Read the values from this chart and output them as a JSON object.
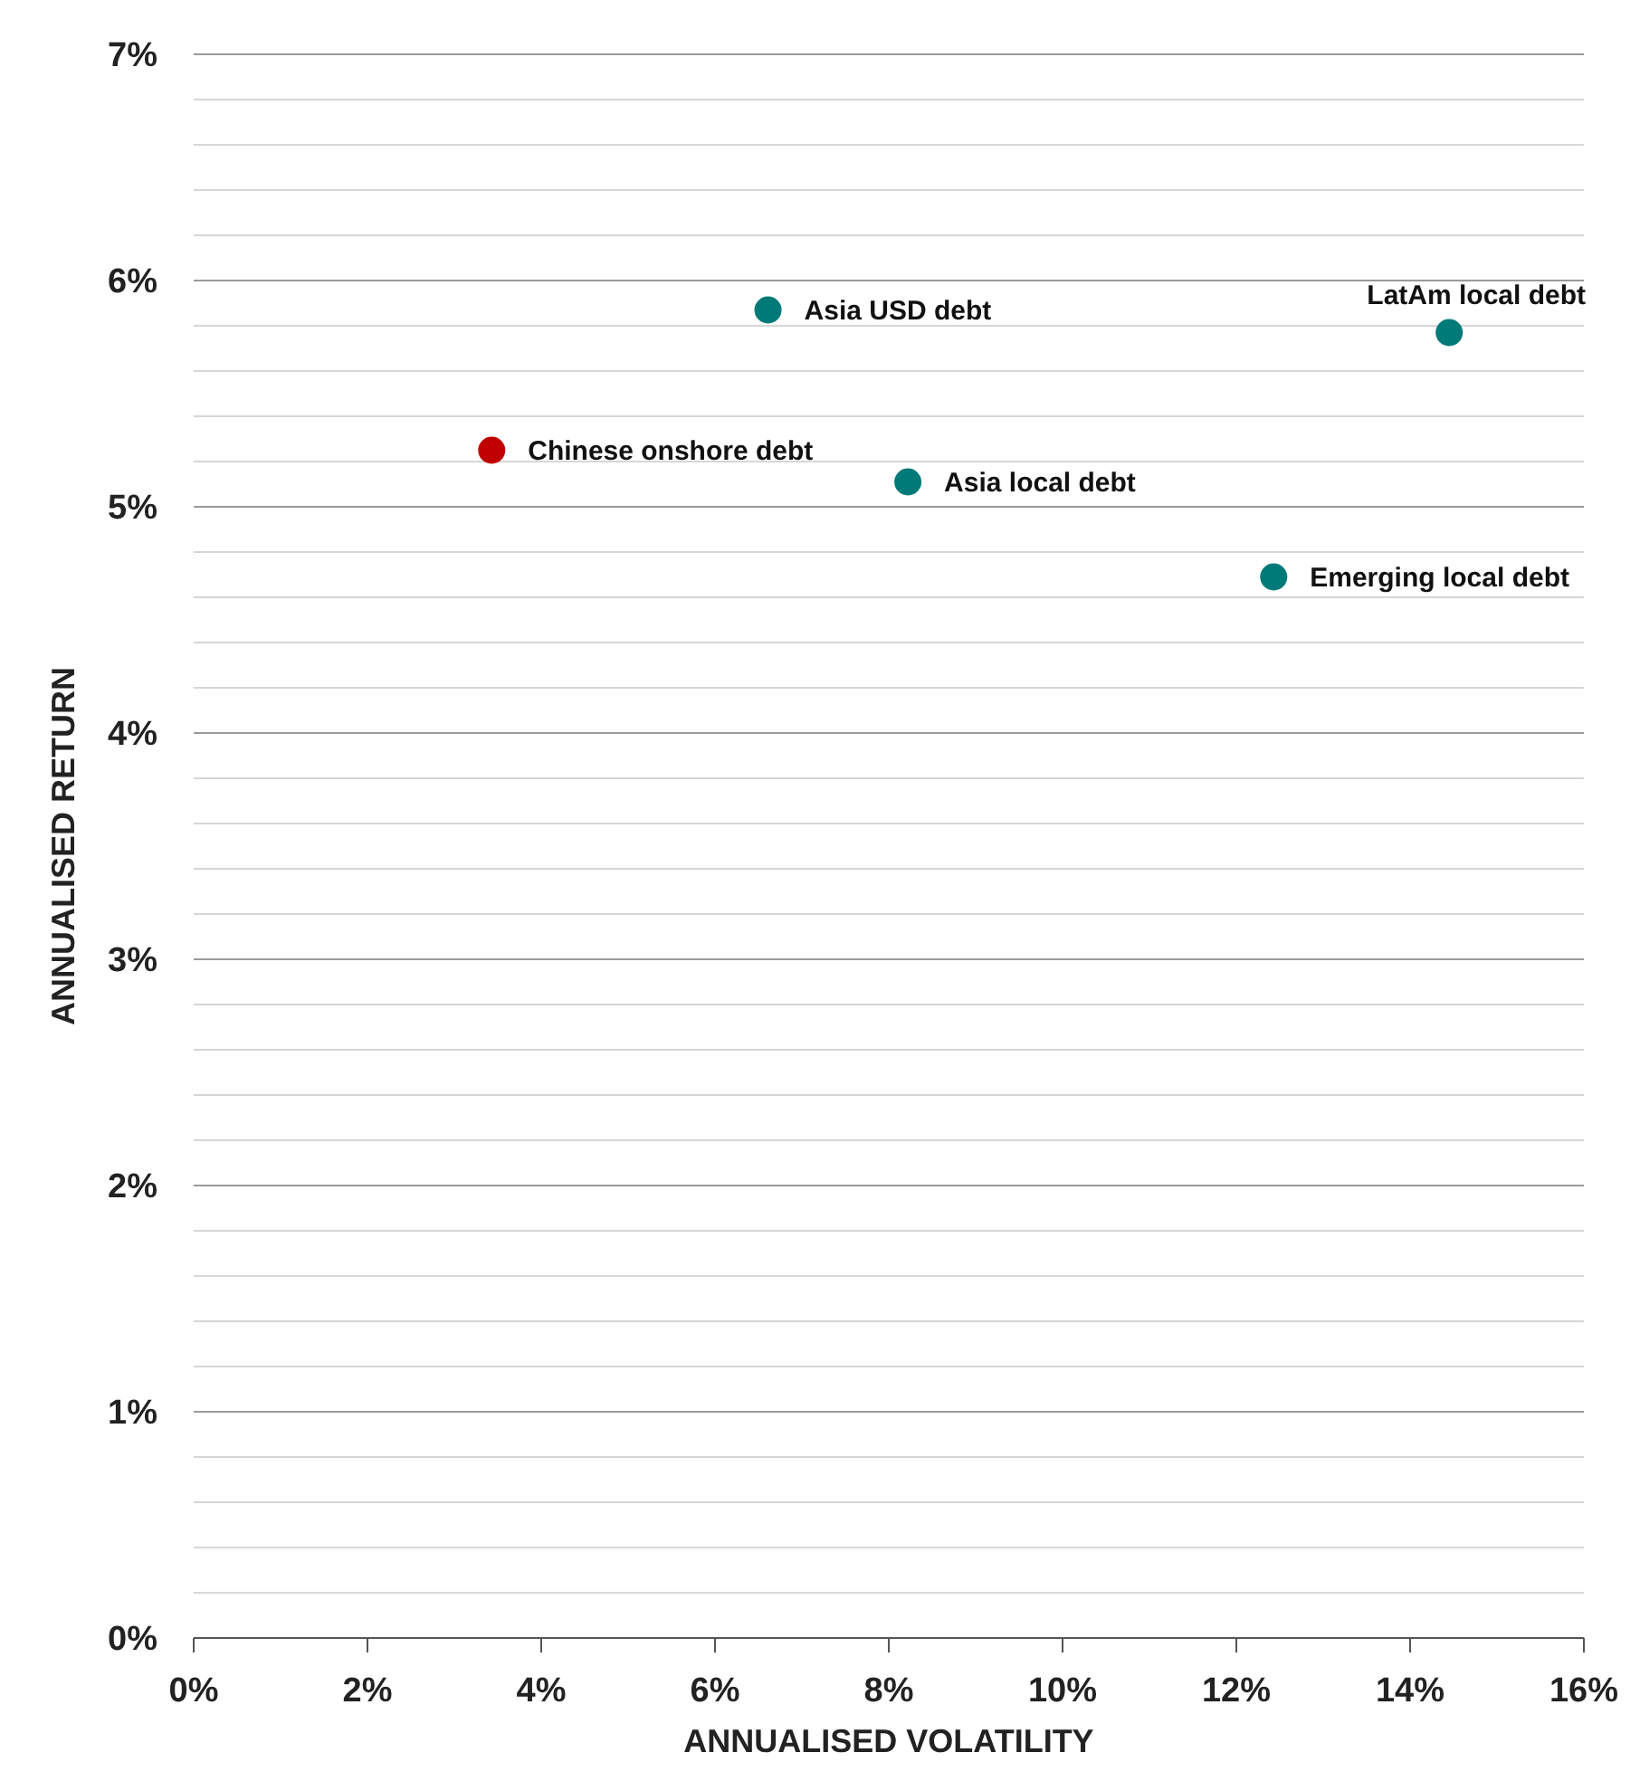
{
  "chart_data": {
    "type": "scatter",
    "xlabel": "ANNUALISED VOLATILITY",
    "ylabel": "ANNUALISED RETURN",
    "x": [
      3.43,
      6.61,
      8.22,
      12.43,
      14.45
    ],
    "series": [
      {
        "values": [
          5.25,
          5.87,
          5.11,
          4.69,
          5.77
        ],
        "colors": [
          "#c00000",
          "#007a78",
          "#007a78",
          "#007a78",
          "#007a78"
        ]
      }
    ],
    "annotations": [
      {
        "text": "Chinese onshore debt",
        "x": 3.43,
        "y": 5.25
      },
      {
        "text": "Asia USD debt",
        "x": 6.61,
        "y": 5.87
      },
      {
        "text": "Asia local debt",
        "x": 8.22,
        "y": 5.11
      },
      {
        "text": "Emerging local debt",
        "x": 12.43,
        "y": 4.69
      },
      {
        "text": "LatAm local debt",
        "x": 14.45,
        "y": 5.77
      }
    ],
    "xlim": [
      0,
      16
    ],
    "ylim": [
      0,
      7
    ],
    "xticks": [
      {
        "value": 0,
        "label": "0%"
      },
      {
        "value": 2,
        "label": "2%"
      },
      {
        "value": 4,
        "label": "4%"
      },
      {
        "value": 6,
        "label": "6%"
      },
      {
        "value": 8,
        "label": "8%"
      },
      {
        "value": 10,
        "label": "10%"
      },
      {
        "value": 12,
        "label": "12%"
      },
      {
        "value": 14,
        "label": "14%"
      },
      {
        "value": 16,
        "label": "16%"
      }
    ],
    "yticks": [
      {
        "value": 0,
        "label": "0%"
      },
      {
        "value": 0.2,
        "label": null
      },
      {
        "value": 0.4,
        "label": null
      },
      {
        "value": 0.6,
        "label": null
      },
      {
        "value": 0.8,
        "label": null
      },
      {
        "value": 1,
        "label": "1%"
      },
      {
        "value": 1.2,
        "label": null
      },
      {
        "value": 1.4,
        "label": null
      },
      {
        "value": 1.6,
        "label": null
      },
      {
        "value": 1.8,
        "label": null
      },
      {
        "value": 2,
        "label": "2%"
      },
      {
        "value": 2.2,
        "label": null
      },
      {
        "value": 2.4,
        "label": null
      },
      {
        "value": 2.6,
        "label": null
      },
      {
        "value": 2.8,
        "label": null
      },
      {
        "value": 3,
        "label": "3%"
      },
      {
        "value": 3.2,
        "label": null
      },
      {
        "value": 3.4,
        "label": null
      },
      {
        "value": 3.6,
        "label": null
      },
      {
        "value": 3.8,
        "label": null
      },
      {
        "value": 4,
        "label": "4%"
      },
      {
        "value": 4.2,
        "label": null
      },
      {
        "value": 4.4,
        "label": null
      },
      {
        "value": 4.6,
        "label": null
      },
      {
        "value": 4.8,
        "label": null
      },
      {
        "value": 5,
        "label": "5%"
      },
      {
        "value": 5.2,
        "label": null
      },
      {
        "value": 5.4,
        "label": null
      },
      {
        "value": 5.6,
        "label": null
      },
      {
        "value": 5.8,
        "label": null
      },
      {
        "value": 6,
        "label": "6%"
      },
      {
        "value": 6.2,
        "label": null
      },
      {
        "value": 6.4,
        "label": null
      },
      {
        "value": 6.6,
        "label": null
      },
      {
        "value": 6.8,
        "label": null
      },
      {
        "value": 7,
        "label": "7%"
      }
    ],
    "grid": "y",
    "marker": "circle"
  }
}
